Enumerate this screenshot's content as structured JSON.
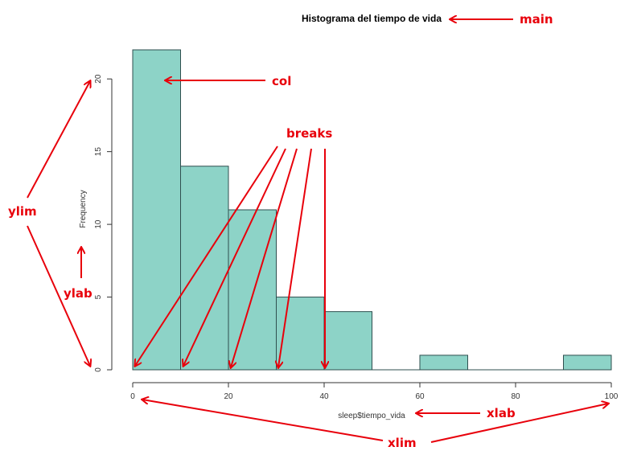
{
  "chart_data": {
    "type": "bar",
    "title": "Histograma del tiempo de vida",
    "xlabel": "sleep$tiempo_vida",
    "ylabel": "Frequency",
    "bins": [
      {
        "x0": 0,
        "x1": 10,
        "count": 22
      },
      {
        "x0": 10,
        "x1": 20,
        "count": 14
      },
      {
        "x0": 20,
        "x1": 30,
        "count": 11
      },
      {
        "x0": 30,
        "x1": 40,
        "count": 5
      },
      {
        "x0": 40,
        "x1": 50,
        "count": 4
      },
      {
        "x0": 50,
        "x1": 60,
        "count": 0
      },
      {
        "x0": 60,
        "x1": 70,
        "count": 1
      },
      {
        "x0": 70,
        "x1": 80,
        "count": 0
      },
      {
        "x0": 80,
        "x1": 90,
        "count": 0
      },
      {
        "x0": 90,
        "x1": 100,
        "count": 1
      }
    ],
    "xlim": [
      0,
      100
    ],
    "ylim": [
      0,
      22
    ],
    "x_ticks": [
      0,
      20,
      40,
      60,
      80,
      100
    ],
    "y_ticks": [
      0,
      5,
      10,
      15,
      20
    ],
    "bar_color": "#8dd3c7",
    "grid": false
  },
  "annotations": {
    "main": "main",
    "col": "col",
    "breaks": "breaks",
    "ylim": "ylim",
    "ylab": "ylab",
    "xlab": "xlab",
    "xlim": "xlim",
    "color": "#e8000b"
  }
}
